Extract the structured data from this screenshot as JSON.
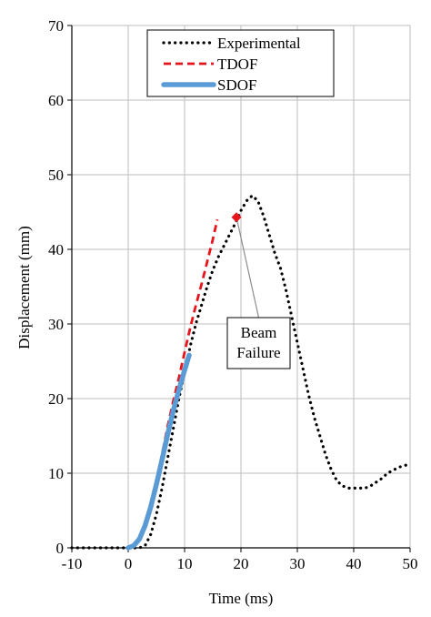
{
  "chart_data": {
    "type": "line",
    "xlabel": "Time (ms)",
    "ylabel": "Displacement (mm)",
    "xlim": [
      -10,
      50
    ],
    "ylim": [
      0,
      70
    ],
    "xticks": [
      -10,
      0,
      10,
      20,
      30,
      40,
      50
    ],
    "yticks": [
      0,
      10,
      20,
      30,
      40,
      50,
      60,
      70
    ],
    "grid": true,
    "legend_position": "top-center",
    "series": [
      {
        "name": "Experimental",
        "style": "dotted",
        "color": "#000000",
        "x": [
          -10,
          -5,
          0,
          1,
          2,
          3,
          4,
          5,
          6,
          7,
          8,
          9,
          10,
          11,
          12,
          13,
          14,
          15,
          16,
          17,
          18,
          19,
          20,
          21,
          22,
          23,
          24,
          25,
          26,
          27,
          28,
          29,
          30,
          31,
          32,
          33,
          34,
          35,
          36,
          37,
          38,
          39,
          40,
          41,
          42,
          43,
          44,
          45,
          46,
          47,
          48,
          49,
          50
        ],
        "y": [
          0,
          0,
          0,
          0,
          0,
          0.3,
          1.8,
          4.5,
          8,
          12,
          16,
          20,
          23.5,
          27,
          30,
          32.5,
          35,
          37.2,
          39,
          40.5,
          42,
          43.5,
          45.2,
          46.5,
          47.2,
          46.5,
          44.5,
          42,
          39.5,
          37.5,
          34.5,
          31,
          27.5,
          24,
          20.5,
          17.5,
          15,
          12.5,
          10.5,
          9,
          8.3,
          8,
          8,
          8,
          8,
          8.3,
          8.8,
          9.3,
          10,
          10.4,
          10.8,
          11,
          11.3
        ]
      },
      {
        "name": "TDOF",
        "style": "dashed",
        "color": "#e8141b",
        "x": [
          0,
          1,
          2,
          3,
          4,
          5,
          6,
          7,
          8,
          9,
          10,
          11,
          12,
          13,
          14,
          15,
          15.8
        ],
        "y": [
          0,
          0.2,
          1.2,
          3,
          5.6,
          8.8,
          12.5,
          16.3,
          19.7,
          22.8,
          26.2,
          29.5,
          32.5,
          35.3,
          38.3,
          41.3,
          44
        ]
      },
      {
        "name": "SDOF",
        "style": "solid",
        "color": "#5b9bd5",
        "x": [
          0,
          1,
          2,
          3,
          4,
          5,
          6,
          7,
          8,
          9,
          10,
          10.8
        ],
        "y": [
          0,
          0.3,
          1.2,
          3,
          5.5,
          8.5,
          11.8,
          15.2,
          18.4,
          21.2,
          23.8,
          25.8
        ]
      }
    ],
    "annotations": [
      {
        "text_lines": [
          "Beam",
          "Failure"
        ],
        "marker": "diamond",
        "marker_color": "#e8141b",
        "point": [
          19.2,
          44.3
        ]
      }
    ]
  }
}
